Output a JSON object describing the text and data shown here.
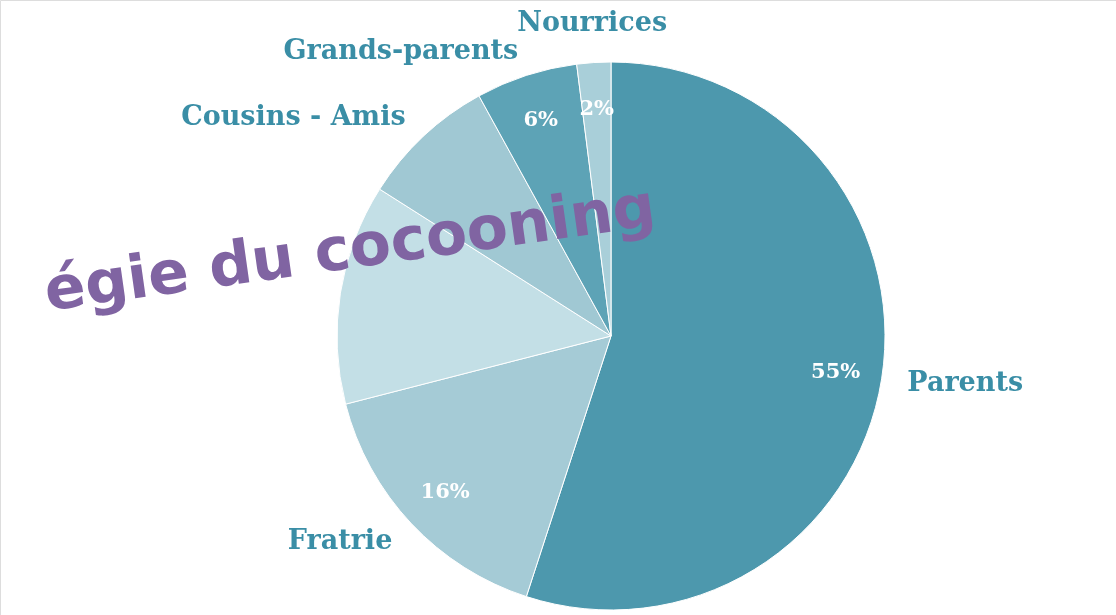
{
  "chart_data": {
    "type": "pie",
    "categories": [
      "Parents",
      "Fratrie",
      null,
      "Cousins - Amis",
      "Grands-parents",
      "Nourrices"
    ],
    "values": [
      55,
      16,
      13,
      8,
      6,
      2
    ],
    "colors": [
      "#4d98ad",
      "#a5cbd6",
      "#c3dfe6",
      "#a0c8d3",
      "#5da3b6",
      "#a9cfd9"
    ],
    "value_labels": [
      "55%",
      "16%",
      null,
      null,
      "6%",
      "2%"
    ],
    "annotations": [
      "égie du cocooning"
    ]
  }
}
